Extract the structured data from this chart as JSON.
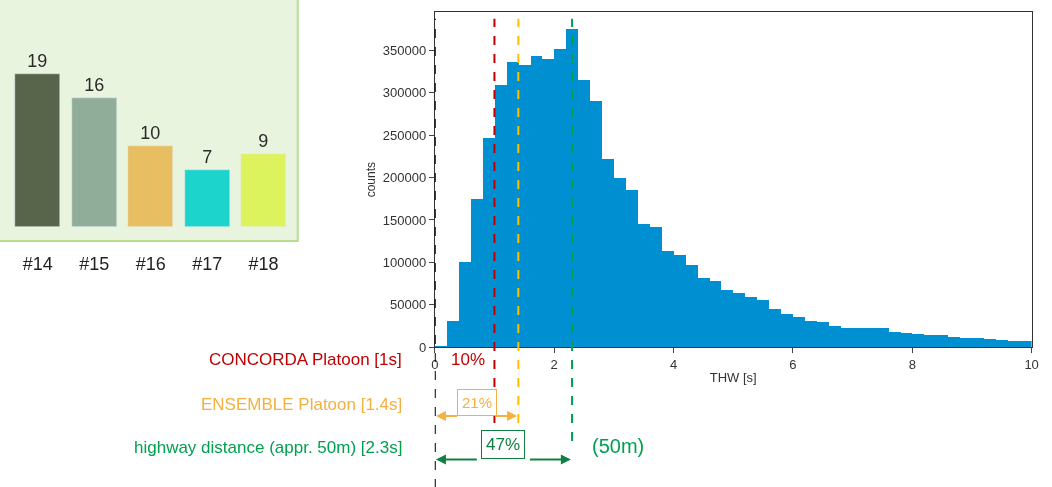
{
  "chart_data": [
    {
      "type": "bar",
      "categories": [
        "#14",
        "#15",
        "#16",
        "#17",
        "#18"
      ],
      "values": [
        19,
        16,
        10,
        7,
        9
      ],
      "colors": [
        "#59654b",
        "#90ad9a",
        "#e8be62",
        "#1dd4cc",
        "#dcf35e"
      ],
      "data_labels": true,
      "tick_labels": "x",
      "grid": false
    },
    {
      "type": "histogram",
      "xlabel": "THW [s]",
      "ylabel": "counts",
      "color": "#008fd0",
      "bins": [
        0,
        0.2,
        0.4,
        0.6,
        0.8,
        1.0,
        1.2,
        1.4,
        1.6,
        1.8,
        2.0,
        2.2,
        2.4,
        2.6,
        2.8,
        3.0,
        3.2,
        3.4,
        3.6,
        3.8,
        4.0,
        4.2,
        4.4,
        4.6,
        4.8,
        5.0,
        5.2,
        5.4,
        5.6,
        5.8,
        6.0,
        6.2,
        6.4,
        6.6,
        6.8,
        7.0,
        7.2,
        7.4,
        7.6,
        7.8,
        8.0,
        8.2,
        8.4,
        8.6,
        8.8,
        9.0,
        9.2,
        9.4,
        9.6,
        9.8,
        10.0
      ],
      "values": [
        1000,
        31000,
        100000,
        175000,
        246000,
        309000,
        336000,
        332000,
        343000,
        340000,
        351000,
        375000,
        315000,
        290000,
        222000,
        199000,
        185000,
        145000,
        142000,
        113000,
        108000,
        97000,
        81000,
        78000,
        67000,
        64000,
        59000,
        55000,
        45000,
        39000,
        35000,
        31000,
        30000,
        25000,
        23000,
        23000,
        22000,
        22000,
        18000,
        17000,
        16000,
        14000,
        14000,
        12000,
        11000,
        11000,
        10000,
        8000,
        7000,
        7000
      ],
      "xlim": [
        0,
        10
      ],
      "xticks": [
        0,
        2,
        4,
        6,
        8,
        10
      ],
      "ylim": [
        0,
        395000
      ],
      "yticks": [
        0,
        50000,
        100000,
        150000,
        200000,
        250000,
        300000,
        350000
      ],
      "grid": false,
      "ref_lines": [
        {
          "axis": "x",
          "value": 0,
          "color": "#000000",
          "line_style": "dashed"
        },
        {
          "axis": "x",
          "value": 1,
          "color": "#c00000",
          "line_style": "dashed"
        },
        {
          "axis": "x",
          "value": 1.4,
          "color": "#ffc000",
          "line_style": "dashed"
        },
        {
          "axis": "x",
          "value": 2.3,
          "color": "#00a050",
          "line_style": "dashed"
        }
      ],
      "annotations": [
        "CONCORDA Platoon [1s]",
        "ENSEMBLE Platoon [1.4s]",
        "highway distance (appr. 50m) [2.3s]",
        "10%",
        "21%",
        "47%",
        "(50m)"
      ]
    }
  ]
}
